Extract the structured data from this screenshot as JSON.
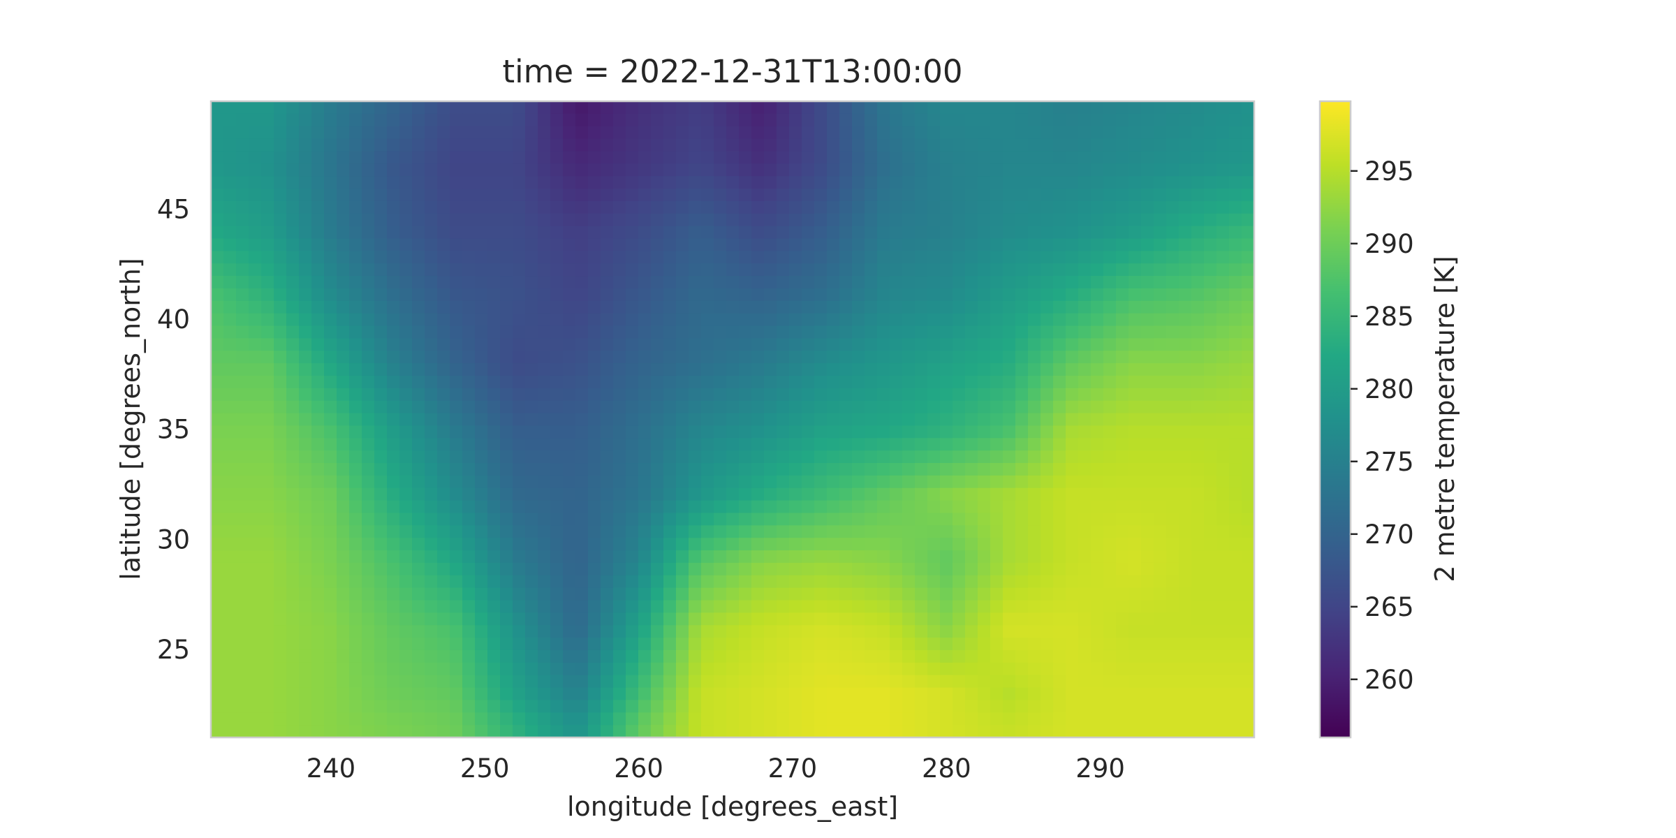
{
  "chart_data": {
    "type": "heatmap",
    "title": "time = 2022-12-31T13:00:00",
    "xlabel": "longitude [degrees_east]",
    "ylabel": "latitude [degrees_north]",
    "colorbar_label": "2 metre temperature [K]",
    "colormap": "viridis",
    "xlim": [
      232.2,
      300.0
    ],
    "ylim": [
      21.0,
      49.9
    ],
    "clim": [
      256.0,
      299.8
    ],
    "x_ticks": [
      240,
      250,
      260,
      270,
      280,
      290
    ],
    "y_ticks": [
      25,
      30,
      35,
      40,
      45
    ],
    "colorbar_ticks": [
      260,
      265,
      270,
      275,
      280,
      285,
      290,
      295
    ],
    "grid": false,
    "field_grid": {
      "lon": [
        232.5,
        236,
        240,
        244,
        248,
        252,
        256,
        260,
        264,
        268,
        272,
        276,
        280,
        284,
        288,
        292,
        296,
        299.5
      ],
      "lat": [
        49.5,
        47,
        44,
        41,
        38,
        35,
        32,
        29,
        26,
        23,
        21.5
      ],
      "values": [
        [
          279,
          279,
          274,
          270,
          266,
          266,
          259,
          262,
          264,
          260,
          266,
          273,
          276,
          276,
          275,
          276,
          277,
          278
        ],
        [
          279,
          278,
          273,
          268,
          265,
          265,
          261,
          263,
          265,
          262,
          266,
          272,
          275,
          276,
          276,
          277,
          278,
          279
        ],
        [
          282,
          280,
          274,
          269,
          266,
          266,
          264,
          266,
          269,
          266,
          269,
          274,
          275,
          277,
          278,
          280,
          283,
          285
        ],
        [
          287,
          284,
          277,
          272,
          268,
          267,
          265,
          268,
          271,
          270,
          272,
          276,
          277,
          280,
          283,
          287,
          288,
          290
        ],
        [
          289,
          289,
          282,
          275,
          270,
          266,
          267,
          270,
          272,
          274,
          277,
          279,
          281,
          283,
          289,
          292,
          292,
          293
        ],
        [
          291,
          291,
          287,
          280,
          274,
          269,
          269,
          272,
          276,
          278,
          281,
          282,
          284,
          287,
          294,
          295,
          295,
          295
        ],
        [
          292,
          292,
          290,
          283,
          277,
          271,
          270,
          273,
          279,
          283,
          286,
          289,
          292,
          294,
          296,
          296,
          296,
          295
        ],
        [
          293,
          293,
          291,
          287,
          282,
          274,
          270,
          276,
          288,
          292,
          293,
          292,
          289,
          294,
          296,
          297,
          296,
          296
        ],
        [
          293,
          293,
          292,
          289,
          287,
          278,
          271,
          281,
          294,
          296,
          297,
          296,
          292,
          297,
          297,
          296,
          296,
          296
        ],
        [
          293,
          293,
          292,
          290,
          289,
          281,
          275,
          286,
          296,
          297,
          298,
          298,
          297,
          295,
          297,
          297,
          297,
          297
        ],
        [
          293,
          293,
          292,
          291,
          290,
          284,
          278,
          289,
          296,
          297,
          298,
          298,
          297,
          296,
          297,
          297,
          297,
          297
        ]
      ]
    }
  }
}
